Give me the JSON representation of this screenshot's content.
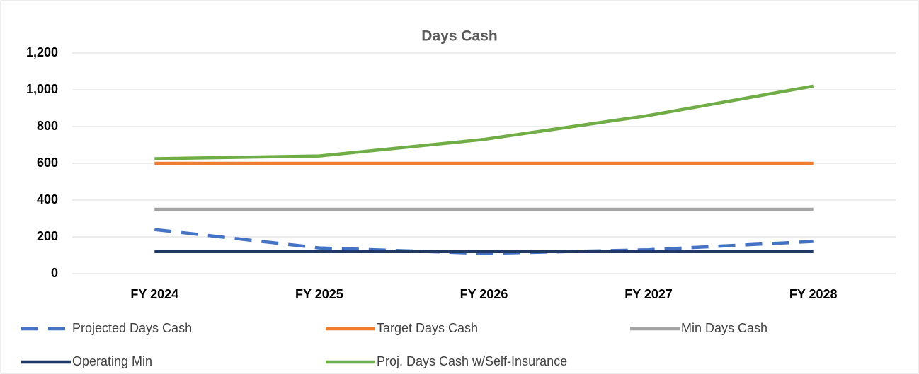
{
  "chart_data": {
    "type": "line",
    "title": "Days Cash",
    "categories": [
      "FY 2024",
      "FY 2025",
      "FY 2026",
      "FY 2027",
      "FY 2028"
    ],
    "series": [
      {
        "name": "Projected Days Cash",
        "color": "#4472c4",
        "dashed": true,
        "values": [
          240,
          140,
          110,
          130,
          175
        ]
      },
      {
        "name": "Target Days Cash",
        "color": "#ed7d31",
        "dashed": false,
        "values": [
          600,
          600,
          600,
          600,
          600
        ]
      },
      {
        "name": "Min Days Cash",
        "color": "#a5a5a5",
        "dashed": false,
        "values": [
          350,
          350,
          350,
          350,
          350
        ]
      },
      {
        "name": "Operating Min",
        "color": "#203864",
        "dashed": false,
        "values": [
          120,
          120,
          120,
          120,
          120
        ]
      },
      {
        "name": "Proj. Days Cash w/Self-Insurance",
        "color": "#70ad47",
        "dashed": false,
        "values": [
          625,
          640,
          730,
          860,
          1020
        ]
      }
    ],
    "ylim": [
      0,
      1200
    ],
    "yticks": [
      0,
      200,
      400,
      600,
      800,
      {
        "value": 1000,
        "label": "1,000"
      },
      {
        "value": 1200,
        "label": "1,200"
      }
    ],
    "grid": true,
    "legend": "bottom"
  }
}
